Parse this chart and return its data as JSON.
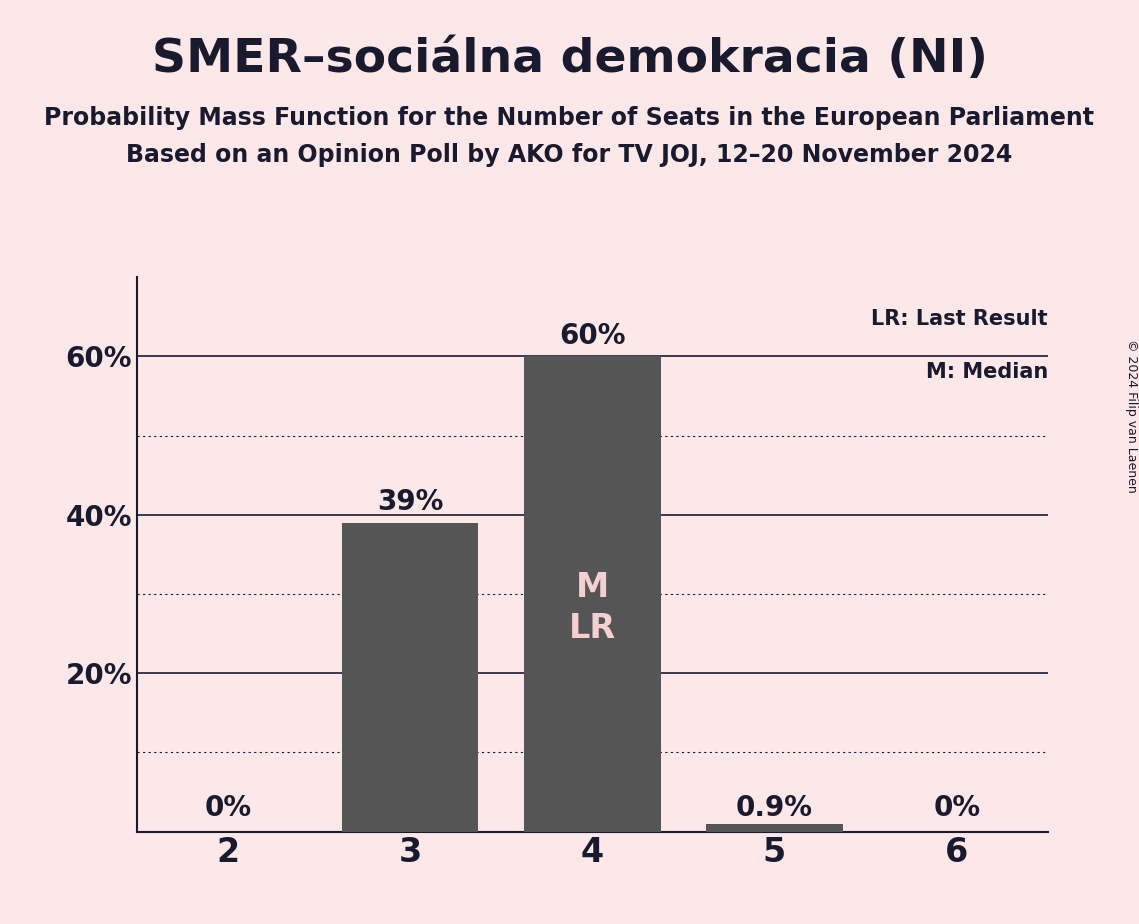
{
  "title": "SMER–sociálna demokracia (NI)",
  "subtitle1": "Probability Mass Function for the Number of Seats in the European Parliament",
  "subtitle2": "Based on an Opinion Poll by AKO for TV JOJ, 12–20 November 2024",
  "categories": [
    2,
    3,
    4,
    5,
    6
  ],
  "values": [
    0.0,
    0.39,
    0.6,
    0.009,
    0.0
  ],
  "bar_color": "#555555",
  "background_color": "#fce8e8",
  "text_color": "#1a1a2e",
  "bar_label_color": "#f5d0d0",
  "bar_labels": [
    "0%",
    "39%",
    "60%",
    "0.9%",
    "0%"
  ],
  "median_bar_index": 2,
  "median_label": "M",
  "lr_label": "LR",
  "ylim": [
    0,
    0.7
  ],
  "copyright": "© 2024 Filip van Laenen",
  "legend_lr": "LR: Last Result",
  "legend_m": "M: Median",
  "solid_yticks": [
    0.0,
    0.2,
    0.4,
    0.6
  ],
  "solid_ytick_labels": [
    "",
    "20%",
    "40%",
    "60%"
  ],
  "dotted_yticks": [
    0.1,
    0.3,
    0.5
  ],
  "bar_width": 0.75,
  "figsize": [
    11.39,
    9.24
  ],
  "dpi": 100
}
